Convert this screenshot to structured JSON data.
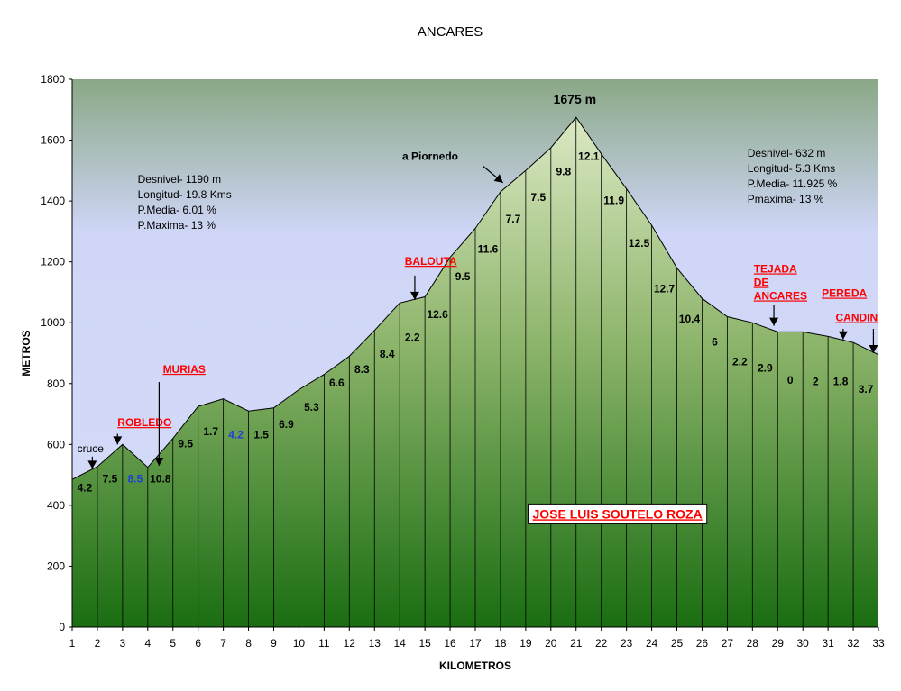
{
  "chart_data": {
    "type": "area",
    "title": "ANCARES",
    "xlabel": "KILOMETROS",
    "ylabel": "METROS",
    "xlim": [
      1,
      33
    ],
    "ylim": [
      0,
      1800
    ],
    "x": [
      1,
      2,
      3,
      4,
      5,
      6,
      7,
      8,
      9,
      10,
      11,
      12,
      13,
      14,
      15,
      16,
      17,
      18,
      19,
      20,
      21,
      22,
      23,
      24,
      25,
      26,
      27,
      28,
      29,
      30,
      31,
      32,
      33
    ],
    "elevation": [
      485,
      527,
      600,
      525,
      620,
      725,
      750,
      710,
      720,
      780,
      830,
      890,
      975,
      1065,
      1085,
      1215,
      1310,
      1430,
      1500,
      1575,
      1675,
      1555,
      1440,
      1320,
      1180,
      1080,
      1020,
      1000,
      970,
      970,
      955,
      935,
      895
    ],
    "x_ticks": [
      "1",
      "2",
      "3",
      "4",
      "5",
      "6",
      "7",
      "8",
      "9",
      "10",
      "11",
      "12",
      "13",
      "14",
      "15",
      "16",
      "17",
      "18",
      "19",
      "20",
      "21",
      "22",
      "23",
      "24",
      "25",
      "26",
      "27",
      "28",
      "29",
      "30",
      "31",
      "32",
      "33"
    ],
    "y_ticks": [
      "0",
      "200",
      "400",
      "600",
      "800",
      "1000",
      "1200",
      "1400",
      "1600",
      "1800"
    ],
    "gradient_labels": [
      {
        "x": 1.5,
        "y": 445,
        "text": "4.2",
        "color": "#000000"
      },
      {
        "x": 2.5,
        "y": 475,
        "text": "7.5",
        "color": "#000000"
      },
      {
        "x": 3.5,
        "y": 475,
        "text": "8.5",
        "color": "#1f3fd8"
      },
      {
        "x": 4.5,
        "y": 475,
        "text": "10.8",
        "color": "#000000"
      },
      {
        "x": 5.5,
        "y": 590,
        "text": "9.5",
        "color": "#000000"
      },
      {
        "x": 6.5,
        "y": 630,
        "text": "1.7",
        "color": "#000000"
      },
      {
        "x": 7.5,
        "y": 620,
        "text": "4.2",
        "color": "#1f3fd8"
      },
      {
        "x": 8.5,
        "y": 620,
        "text": "1.5",
        "color": "#000000"
      },
      {
        "x": 9.5,
        "y": 655,
        "text": "6.9",
        "color": "#000000"
      },
      {
        "x": 10.5,
        "y": 710,
        "text": "5.3",
        "color": "#000000"
      },
      {
        "x": 11.5,
        "y": 790,
        "text": "6.6",
        "color": "#000000"
      },
      {
        "x": 12.5,
        "y": 835,
        "text": "8.3",
        "color": "#000000"
      },
      {
        "x": 13.5,
        "y": 885,
        "text": "8.4",
        "color": "#000000"
      },
      {
        "x": 14.5,
        "y": 940,
        "text": "2.2",
        "color": "#000000"
      },
      {
        "x": 15.5,
        "y": 1015,
        "text": "12.6",
        "color": "#000000"
      },
      {
        "x": 16.5,
        "y": 1140,
        "text": "9.5",
        "color": "#000000"
      },
      {
        "x": 17.5,
        "y": 1230,
        "text": "11.6",
        "color": "#000000"
      },
      {
        "x": 18.5,
        "y": 1330,
        "text": "7.7",
        "color": "#000000"
      },
      {
        "x": 19.5,
        "y": 1400,
        "text": "7.5",
        "color": "#000000"
      },
      {
        "x": 20.5,
        "y": 1485,
        "text": "9.8",
        "color": "#000000"
      },
      {
        "x": 21.5,
        "y": 1535,
        "text": "12.1",
        "color": "#000000"
      },
      {
        "x": 22.5,
        "y": 1390,
        "text": "11.9",
        "color": "#000000"
      },
      {
        "x": 23.5,
        "y": 1250,
        "text": "12.5",
        "color": "#000000"
      },
      {
        "x": 24.5,
        "y": 1100,
        "text": "12.7",
        "color": "#000000"
      },
      {
        "x": 25.5,
        "y": 1000,
        "text": "10.4",
        "color": "#000000"
      },
      {
        "x": 26.5,
        "y": 925,
        "text": "6",
        "color": "#000000"
      },
      {
        "x": 27.5,
        "y": 860,
        "text": "2.2",
        "color": "#000000"
      },
      {
        "x": 28.5,
        "y": 840,
        "text": "2.9",
        "color": "#000000"
      },
      {
        "x": 29.5,
        "y": 800,
        "text": "0",
        "color": "#000000"
      },
      {
        "x": 30.5,
        "y": 795,
        "text": "2",
        "color": "#000000"
      },
      {
        "x": 31.5,
        "y": 795,
        "text": "1.8",
        "color": "#000000"
      },
      {
        "x": 32.5,
        "y": 770,
        "text": "3.7",
        "color": "#000000"
      }
    ],
    "places": [
      {
        "text": "ROBLEDO",
        "lines": [
          "ROBLEDO"
        ],
        "label_x": 2.8,
        "label_y": 660,
        "arrow_from": [
          2.8,
          635
        ],
        "arrow_to": [
          2.8,
          600
        ]
      },
      {
        "text": "MURIAS",
        "lines": [
          "MURIAS"
        ],
        "label_x": 4.6,
        "label_y": 835,
        "arrow_from": [
          4.45,
          805
        ],
        "arrow_to": [
          4.45,
          530
        ]
      },
      {
        "text": "BALOUTA",
        "lines": [
          "BALOUTA"
        ],
        "label_x": 14.2,
        "label_y": 1190,
        "arrow_from": [
          14.6,
          1155
        ],
        "arrow_to": [
          14.6,
          1075
        ]
      },
      {
        "text": "TEJADA DE ANCARES",
        "lines": [
          "TEJADA",
          "DE",
          "ANCARES"
        ],
        "label_x": 28.05,
        "label_y": 1165,
        "arrow_from": [
          28.85,
          1060
        ],
        "arrow_to": [
          28.85,
          990
        ]
      },
      {
        "text": "PEREDA",
        "lines": [
          "PEREDA"
        ],
        "label_x": 30.75,
        "label_y": 1085,
        "arrow_from": [
          31.6,
          980
        ],
        "arrow_to": [
          31.6,
          945
        ]
      },
      {
        "text": "CANDIN",
        "lines": [
          "CANDIN"
        ],
        "label_x": 31.3,
        "label_y": 1005,
        "arrow_from": [
          32.8,
          980
        ],
        "arrow_to": [
          32.8,
          900
        ]
      }
    ],
    "notes": [
      {
        "text": "cruce",
        "x": 1.2,
        "y": 575,
        "arrow_from": [
          1.8,
          560
        ],
        "arrow_to": [
          1.8,
          520
        ],
        "bold": false
      },
      {
        "text": "a Piornedo",
        "x": 14.1,
        "y": 1535,
        "arrow_from": [
          17.3,
          1515
        ],
        "arrow_to": [
          18.1,
          1460
        ],
        "bold": true
      }
    ],
    "peak_label": {
      "text": "1675 m",
      "x": 20.1,
      "y": 1720
    },
    "stats_left": {
      "x": 3.6,
      "y": 1460,
      "lines": [
        "Desnivel- 1190 m",
        "Longitud- 19.8 Kms",
        "P.Media- 6.01 %",
        "P.Maxima- 13 %"
      ]
    },
    "stats_right": {
      "x": 27.8,
      "y": 1545,
      "lines": [
        "Desnivel- 632 m",
        "Longitud- 5.3 Kms",
        "P.Media- 11.925 %",
        "Pmaxima- 13 %"
      ]
    },
    "author": {
      "text": "JOSE LUIS SOUTELO ROZA",
      "x": 19.2,
      "y": 360
    },
    "grid": false,
    "colors": {
      "sky_top": "#8aa886",
      "sky_mid": "#cfd6f7",
      "area_top": "#d8e6c0",
      "area_bottom": "#1a6d12",
      "outline": "#000000",
      "place_label": "#ff0000"
    }
  }
}
